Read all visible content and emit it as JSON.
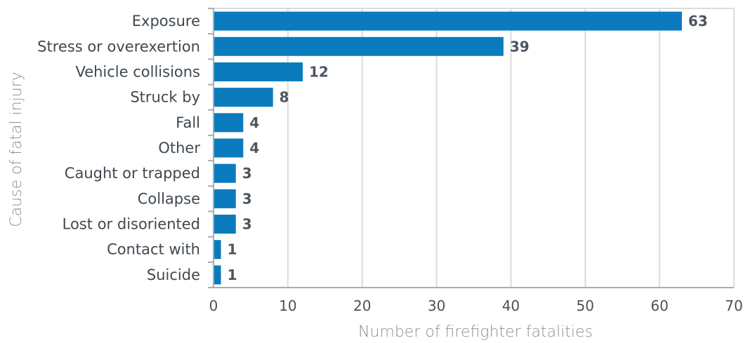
{
  "chart_data": {
    "type": "bar",
    "orientation": "horizontal",
    "categories": [
      "Exposure",
      "Stress or overexertion",
      "Vehicle collisions",
      "Struck by",
      "Fall",
      "Other",
      "Caught or trapped",
      "Collapse",
      "Lost or disoriented",
      "Contact with",
      "Suicide"
    ],
    "values": [
      63,
      39,
      12,
      8,
      4,
      4,
      3,
      3,
      3,
      1,
      1
    ],
    "xlabel": "Number of firefighter fatalities",
    "ylabel": "Cause of fatal injury",
    "xlim": [
      0,
      70
    ],
    "xticks": [
      0,
      10,
      20,
      30,
      40,
      50,
      60,
      70
    ],
    "grid": true,
    "bar_color": "#0a7bbd"
  }
}
